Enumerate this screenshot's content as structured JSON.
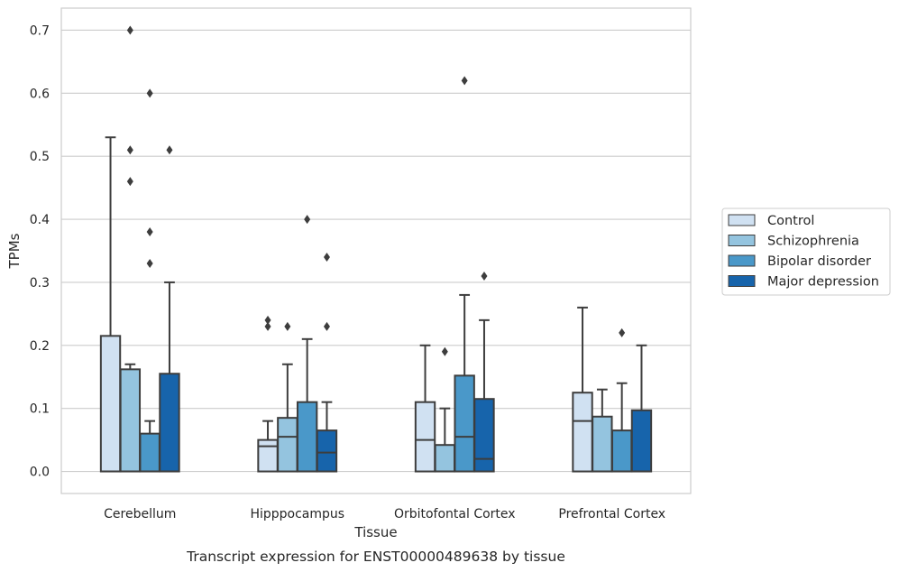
{
  "chart_data": {
    "type": "box",
    "xlabel": "Tissue",
    "ylabel": "TPMs",
    "caption": "Transcript expression for ENST00000489638 by tissue",
    "ylim": [
      -0.035,
      0.735
    ],
    "yticks": [
      0.0,
      0.1,
      0.2,
      0.3,
      0.4,
      0.5,
      0.6,
      0.7
    ],
    "ytick_labels": [
      "0.0",
      "0.1",
      "0.2",
      "0.3",
      "0.4",
      "0.5",
      "0.6",
      "0.7"
    ],
    "grid": "horizontal",
    "legend_position": "right",
    "categories": [
      "Cerebellum",
      "Hipppocampus",
      "Orbitofontal Cortex",
      "Prefrontal Cortex"
    ],
    "series": [
      {
        "name": "Control",
        "color": "#d0e1f2",
        "boxes": [
          {
            "q1": 0.0,
            "median": 0.0,
            "q3": 0.215,
            "whisker_low": 0.0,
            "whisker_high": 0.53,
            "outliers": []
          },
          {
            "q1": 0.0,
            "median": 0.04,
            "q3": 0.05,
            "whisker_low": 0.0,
            "whisker_high": 0.08,
            "outliers": [
              0.24,
              0.23
            ]
          },
          {
            "q1": 0.0,
            "median": 0.05,
            "q3": 0.11,
            "whisker_low": 0.0,
            "whisker_high": 0.2,
            "outliers": []
          },
          {
            "q1": 0.0,
            "median": 0.08,
            "q3": 0.125,
            "whisker_low": 0.0,
            "whisker_high": 0.26,
            "outliers": []
          }
        ]
      },
      {
        "name": "Schizophrenia",
        "color": "#94c4df",
        "boxes": [
          {
            "q1": 0.0,
            "median": 0.0,
            "q3": 0.162,
            "whisker_low": 0.0,
            "whisker_high": 0.17,
            "outliers": [
              0.7,
              0.51,
              0.46
            ]
          },
          {
            "q1": 0.0,
            "median": 0.055,
            "q3": 0.085,
            "whisker_low": 0.0,
            "whisker_high": 0.17,
            "outliers": [
              0.23
            ]
          },
          {
            "q1": 0.0,
            "median": 0.0,
            "q3": 0.042,
            "whisker_low": 0.0,
            "whisker_high": 0.1,
            "outliers": [
              0.19
            ]
          },
          {
            "q1": 0.0,
            "median": 0.0,
            "q3": 0.087,
            "whisker_low": 0.0,
            "whisker_high": 0.13,
            "outliers": []
          }
        ]
      },
      {
        "name": "Bipolar disorder",
        "color": "#4a98c9",
        "boxes": [
          {
            "q1": 0.0,
            "median": 0.0,
            "q3": 0.06,
            "whisker_low": 0.0,
            "whisker_high": 0.08,
            "outliers": [
              0.6,
              0.38,
              0.33
            ]
          },
          {
            "q1": 0.0,
            "median": 0.0,
            "q3": 0.11,
            "whisker_low": 0.0,
            "whisker_high": 0.21,
            "outliers": [
              0.4
            ]
          },
          {
            "q1": 0.0,
            "median": 0.055,
            "q3": 0.152,
            "whisker_low": 0.0,
            "whisker_high": 0.28,
            "outliers": [
              0.62
            ]
          },
          {
            "q1": 0.0,
            "median": 0.0,
            "q3": 0.065,
            "whisker_low": 0.0,
            "whisker_high": 0.14,
            "outliers": [
              0.22
            ]
          }
        ]
      },
      {
        "name": "Major depression",
        "color": "#1764ab",
        "boxes": [
          {
            "q1": 0.0,
            "median": 0.0,
            "q3": 0.155,
            "whisker_low": 0.0,
            "whisker_high": 0.3,
            "outliers": [
              0.51
            ]
          },
          {
            "q1": 0.0,
            "median": 0.03,
            "q3": 0.065,
            "whisker_low": 0.0,
            "whisker_high": 0.11,
            "outliers": [
              0.34,
              0.23
            ]
          },
          {
            "q1": 0.0,
            "median": 0.02,
            "q3": 0.115,
            "whisker_low": 0.0,
            "whisker_high": 0.24,
            "outliers": [
              0.31
            ]
          },
          {
            "q1": 0.0,
            "median": 0.0,
            "q3": 0.097,
            "whisker_low": 0.0,
            "whisker_high": 0.2,
            "outliers": []
          }
        ]
      }
    ]
  }
}
